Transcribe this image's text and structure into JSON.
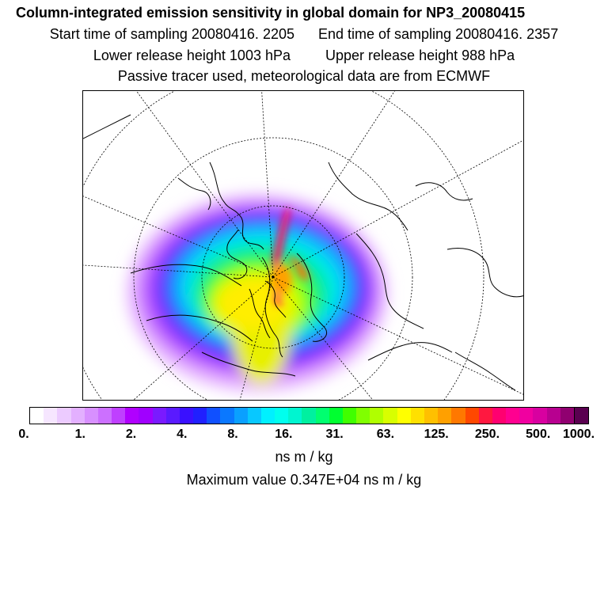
{
  "header": {
    "title": "Column-integrated emission sensitivity in global domain for NP3_20080415",
    "start_time": "Start time of sampling 20080416.  2205",
    "end_time": "End time of sampling 20080416.  2357",
    "lower_release": "Lower release height 1003 hPa",
    "upper_release": "Upper release height  988 hPa",
    "tracer_note": "Passive tracer used, meteorological data are from ECMWF"
  },
  "colorbar": {
    "colors": [
      "#ffffff",
      "#f6e6ff",
      "#eccbff",
      "#e3b0ff",
      "#d890ff",
      "#cc70ff",
      "#bf40ff",
      "#b000ff",
      "#a000ff",
      "#7a1aff",
      "#5a1aff",
      "#3a10ff",
      "#2020ff",
      "#1050ff",
      "#0a78ff",
      "#0aa0ff",
      "#08c8ff",
      "#00f0ff",
      "#00ffee",
      "#00f5d0",
      "#00f0a0",
      "#00ff70",
      "#00ff30",
      "#40ff00",
      "#80ff00",
      "#b0ff00",
      "#d8ff00",
      "#ffff00",
      "#ffe000",
      "#ffc000",
      "#ffa000",
      "#ff7800",
      "#ff4800",
      "#ff1840",
      "#ff0070",
      "#ff0090",
      "#f000a0",
      "#d800a0",
      "#b80090",
      "#900070",
      "#5a0050"
    ],
    "tick_labels": [
      "0.",
      "1.",
      "2.",
      "4.",
      "8.",
      "16.",
      "31.",
      "63.",
      "125.",
      "250.",
      "500.",
      "1000."
    ],
    "unit": "ns m / kg"
  },
  "maximum": "Maximum value  0.347E+04 ns m / kg"
}
